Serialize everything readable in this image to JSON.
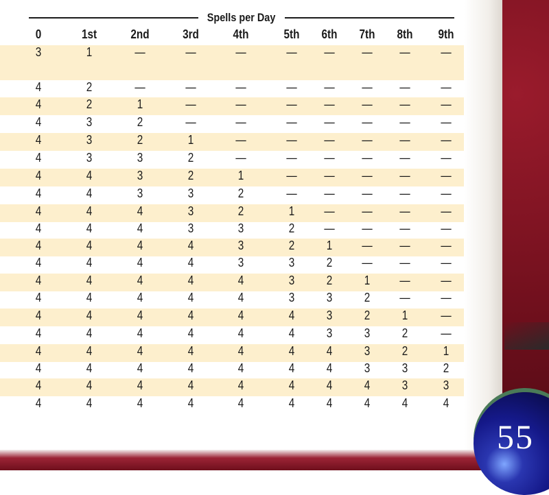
{
  "table": {
    "title": "Spells per Day",
    "headers": [
      "0",
      "1st",
      "2nd",
      "3rd",
      "4th",
      "5th",
      "6th",
      "7th",
      "8th",
      "9th"
    ],
    "rows": [
      [
        "3",
        "1",
        "—",
        "—",
        "—",
        "—",
        "—",
        "—",
        "—",
        "—"
      ],
      [
        "4",
        "2",
        "—",
        "—",
        "—",
        "—",
        "—",
        "—",
        "—",
        "—"
      ],
      [
        "4",
        "2",
        "1",
        "—",
        "—",
        "—",
        "—",
        "—",
        "—",
        "—"
      ],
      [
        "4",
        "3",
        "2",
        "—",
        "—",
        "—",
        "—",
        "—",
        "—",
        "—"
      ],
      [
        "4",
        "3",
        "2",
        "1",
        "—",
        "—",
        "—",
        "—",
        "—",
        "—"
      ],
      [
        "4",
        "3",
        "3",
        "2",
        "—",
        "—",
        "—",
        "—",
        "—",
        "—"
      ],
      [
        "4",
        "4",
        "3",
        "2",
        "1",
        "—",
        "—",
        "—",
        "—",
        "—"
      ],
      [
        "4",
        "4",
        "3",
        "3",
        "2",
        "—",
        "—",
        "—",
        "—",
        "—"
      ],
      [
        "4",
        "4",
        "4",
        "3",
        "2",
        "1",
        "—",
        "—",
        "—",
        "—"
      ],
      [
        "4",
        "4",
        "4",
        "3",
        "3",
        "2",
        "—",
        "—",
        "—",
        "—"
      ],
      [
        "4",
        "4",
        "4",
        "4",
        "3",
        "2",
        "1",
        "—",
        "—",
        "—"
      ],
      [
        "4",
        "4",
        "4",
        "4",
        "3",
        "3",
        "2",
        "—",
        "—",
        "—"
      ],
      [
        "4",
        "4",
        "4",
        "4",
        "4",
        "3",
        "2",
        "1",
        "—",
        "—"
      ],
      [
        "4",
        "4",
        "4",
        "4",
        "4",
        "3",
        "3",
        "2",
        "—",
        "—"
      ],
      [
        "4",
        "4",
        "4",
        "4",
        "4",
        "4",
        "3",
        "2",
        "1",
        "—"
      ],
      [
        "4",
        "4",
        "4",
        "4",
        "4",
        "4",
        "3",
        "3",
        "2",
        "—"
      ],
      [
        "4",
        "4",
        "4",
        "4",
        "4",
        "4",
        "4",
        "3",
        "2",
        "1"
      ],
      [
        "4",
        "4",
        "4",
        "4",
        "4",
        "4",
        "4",
        "3",
        "3",
        "2"
      ],
      [
        "4",
        "4",
        "4",
        "4",
        "4",
        "4",
        "4",
        "4",
        "3",
        "3"
      ],
      [
        "4",
        "4",
        "4",
        "4",
        "4",
        "4",
        "4",
        "4",
        "4",
        "4"
      ]
    ],
    "shade_color": "#fdefcd"
  },
  "page": {
    "number": "55"
  }
}
